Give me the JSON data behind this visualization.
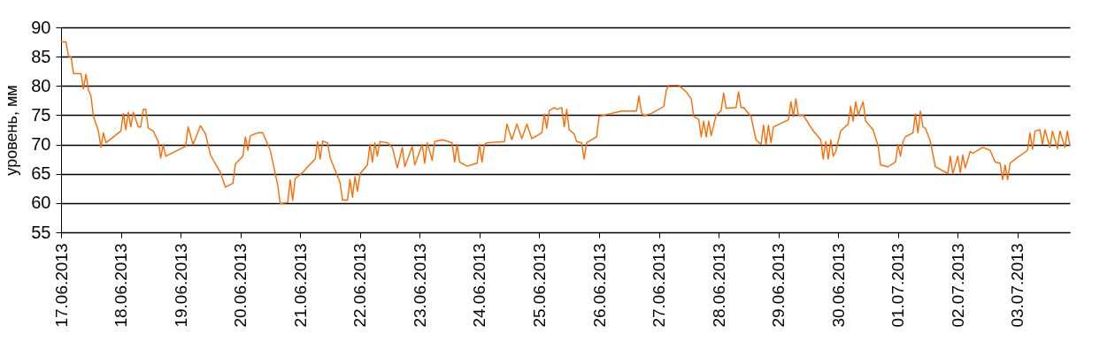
{
  "chart_data": {
    "type": "line",
    "ylabel": "уровень, мм",
    "color": "#ff6a00",
    "grid": "y",
    "xlim": [
      "2013-06-17T00:00",
      "2013-07-03T21:00"
    ],
    "xticks": [
      {
        "value": "2013-06-17",
        "label": "17.06.2013"
      },
      {
        "value": "2013-06-18",
        "label": "18.06.2013"
      },
      {
        "value": "2013-06-19",
        "label": "19.06.2013"
      },
      {
        "value": "2013-06-20",
        "label": "20.06.2013"
      },
      {
        "value": "2013-06-21",
        "label": "21.06.2013"
      },
      {
        "value": "2013-06-22",
        "label": "22.06.2013"
      },
      {
        "value": "2013-06-23",
        "label": "23.06.2013"
      },
      {
        "value": "2013-06-24",
        "label": "24.06.2013"
      },
      {
        "value": "2013-06-25",
        "label": "25.06.2013"
      },
      {
        "value": "2013-06-26",
        "label": "26.06.2013"
      },
      {
        "value": "2013-06-27",
        "label": "27.06.2013"
      },
      {
        "value": "2013-06-28",
        "label": "28.06.2013"
      },
      {
        "value": "2013-06-29",
        "label": "29.06.2013"
      },
      {
        "value": "2013-06-30",
        "label": "30.06.2013"
      },
      {
        "value": "2013-07-01",
        "label": "01.07.2013"
      },
      {
        "value": "2013-07-02",
        "label": "02.07.2013"
      },
      {
        "value": "2013-07-03",
        "label": "03.07.2013"
      }
    ],
    "ylim": [
      55,
      90
    ],
    "yticks": [
      55,
      60,
      65,
      70,
      75,
      80,
      85,
      90
    ],
    "x": [
      "2013-06-17T00:00",
      "2013-06-17T02:00",
      "2013-06-17T03:00",
      "2013-06-17T04:00",
      "2013-06-17T05:00",
      "2013-06-17T08:00",
      "2013-06-17T09:00",
      "2013-06-17T10:00",
      "2013-06-17T11:00",
      "2013-06-17T12:00",
      "2013-06-17T13:00",
      "2013-06-17T15:00",
      "2013-06-17T16:00",
      "2013-06-17T17:00",
      "2013-06-17T18:00",
      "2013-06-18T00:00",
      "2013-06-18T01:00",
      "2013-06-18T02:00",
      "2013-06-18T03:00",
      "2013-06-18T04:00",
      "2013-06-18T05:00",
      "2013-06-18T07:00",
      "2013-06-18T08:00",
      "2013-06-18T09:00",
      "2013-06-18T10:00",
      "2013-06-18T11:00",
      "2013-06-18T13:00",
      "2013-06-18T15:00",
      "2013-06-18T16:00",
      "2013-06-18T17:00",
      "2013-06-18T18:00",
      "2013-06-19T02:00",
      "2013-06-19T03:00",
      "2013-06-19T05:00",
      "2013-06-19T08:00",
      "2013-06-19T10:00",
      "2013-06-19T12:00",
      "2013-06-19T16:00",
      "2013-06-19T18:00",
      "2013-06-19T21:00",
      "2013-06-19T22:00",
      "2013-06-20T01:00",
      "2013-06-20T02:00",
      "2013-06-20T03:00",
      "2013-06-20T04:00",
      "2013-06-20T07:00",
      "2013-06-20T09:00",
      "2013-06-20T12:00",
      "2013-06-20T13:00",
      "2013-06-20T15:00",
      "2013-06-20T16:00",
      "2013-06-20T19:00",
      "2013-06-20T20:00",
      "2013-06-20T21:00",
      "2013-06-20T22:00",
      "2013-06-21T01:00",
      "2013-06-21T03:00",
      "2013-06-21T06:00",
      "2013-06-21T07:00",
      "2013-06-21T08:00",
      "2013-06-21T09:00",
      "2013-06-21T11:00",
      "2013-06-21T12:00",
      "2013-06-21T16:00",
      "2013-06-21T17:00",
      "2013-06-21T19:00",
      "2013-06-21T20:00",
      "2013-06-21T21:00",
      "2013-06-21T22:00",
      "2013-06-21T23:00",
      "2013-06-22T00:00",
      "2013-06-22T03:00",
      "2013-06-22T04:00",
      "2013-06-22T05:00",
      "2013-06-22T06:00",
      "2013-06-22T07:00",
      "2013-06-22T08:00",
      "2013-06-22T11:00",
      "2013-06-22T13:00",
      "2013-06-22T15:00",
      "2013-06-22T17:00",
      "2013-06-22T18:00",
      "2013-06-22T21:00",
      "2013-06-22T22:00",
      "2013-06-23T01:00",
      "2013-06-23T02:00",
      "2013-06-23T03:00",
      "2013-06-23T05:00",
      "2013-06-23T06:00",
      "2013-06-23T09:00",
      "2013-06-23T13:00",
      "2013-06-23T14:00",
      "2013-06-23T15:00",
      "2013-06-23T16:00",
      "2013-06-23T19:00",
      "2013-06-23T23:00",
      "2013-06-24T00:00",
      "2013-06-24T01:00",
      "2013-06-24T02:00",
      "2013-06-24T03:00",
      "2013-06-24T10:00",
      "2013-06-24T11:00",
      "2013-06-24T13:00",
      "2013-06-24T15:00",
      "2013-06-24T17:00",
      "2013-06-24T19:00",
      "2013-06-24T21:00",
      "2013-06-25T01:00",
      "2013-06-25T02:00",
      "2013-06-25T03:00",
      "2013-06-25T04:00",
      "2013-06-25T06:00",
      "2013-06-25T07:00",
      "2013-06-25T09:00",
      "2013-06-25T10:00",
      "2013-06-25T11:00",
      "2013-06-25T12:00",
      "2013-06-25T14:00",
      "2013-06-25T15:00",
      "2013-06-25T17:00",
      "2013-06-25T18:00",
      "2013-06-25T19:00",
      "2013-06-25T23:00",
      "2013-06-26T00:00",
      "2013-06-26T02:00",
      "2013-06-26T09:00",
      "2013-06-26T15:00",
      "2013-06-26T16:00",
      "2013-06-26T17:00",
      "2013-06-26T18:00",
      "2013-06-26T21:00",
      "2013-06-27T02:00",
      "2013-06-27T03:00",
      "2013-06-27T04:00",
      "2013-06-27T08:00",
      "2013-06-27T11:00",
      "2013-06-27T13:00",
      "2013-06-27T14:00",
      "2013-06-27T16:00",
      "2013-06-27T17:00",
      "2013-06-27T18:00",
      "2013-06-27T19:00",
      "2013-06-27T20:00",
      "2013-06-27T21:00",
      "2013-06-27T23:00",
      "2013-06-28T01:00",
      "2013-06-28T02:00",
      "2013-06-28T03:00",
      "2013-06-28T07:00",
      "2013-06-28T08:00",
      "2013-06-28T09:00",
      "2013-06-28T10:00",
      "2013-06-28T13:00",
      "2013-06-28T15:00",
      "2013-06-28T17:00",
      "2013-06-28T18:00",
      "2013-06-28T19:00",
      "2013-06-28T20:00",
      "2013-06-28T21:00",
      "2013-06-28T22:00",
      "2013-06-29T04:00",
      "2013-06-29T05:00",
      "2013-06-29T06:00",
      "2013-06-29T07:00",
      "2013-06-29T08:00",
      "2013-06-29T10:00",
      "2013-06-29T14:00",
      "2013-06-29T17:00",
      "2013-06-29T18:00",
      "2013-06-29T19:00",
      "2013-06-29T20:00",
      "2013-06-29T21:00",
      "2013-06-29T22:00",
      "2013-06-29T23:00",
      "2013-06-30T01:00",
      "2013-06-30T04:00",
      "2013-06-30T05:00",
      "2013-06-30T06:00",
      "2013-06-30T07:00",
      "2013-06-30T08:00",
      "2013-06-30T10:00",
      "2013-06-30T11:00",
      "2013-06-30T14:00",
      "2013-06-30T16:00",
      "2013-06-30T17:00",
      "2013-06-30T20:00",
      "2013-06-30T23:00",
      "2013-07-01T00:00",
      "2013-07-01T01:00",
      "2013-07-01T02:00",
      "2013-07-01T03:00",
      "2013-07-01T06:00",
      "2013-07-01T07:00",
      "2013-07-01T08:00",
      "2013-07-01T09:00",
      "2013-07-01T10:00",
      "2013-07-01T11:00",
      "2013-07-01T13:00",
      "2013-07-01T15:00",
      "2013-07-01T16:00",
      "2013-07-01T20:00",
      "2013-07-01T21:00",
      "2013-07-01T22:00",
      "2013-07-02T00:00",
      "2013-07-02T01:00",
      "2013-07-02T02:00",
      "2013-07-02T03:00",
      "2013-07-02T05:00",
      "2013-07-02T06:00",
      "2013-07-02T10:00",
      "2013-07-02T13:00",
      "2013-07-02T15:00",
      "2013-07-02T17:00",
      "2013-07-02T18:00",
      "2013-07-02T19:00",
      "2013-07-02T20:00",
      "2013-07-02T21:00",
      "2013-07-02T23:00",
      "2013-07-03T04:00",
      "2013-07-03T05:00",
      "2013-07-03T06:00",
      "2013-07-03T07:00",
      "2013-07-03T09:00",
      "2013-07-03T10:00",
      "2013-07-03T11:00",
      "2013-07-03T13:00",
      "2013-07-03T14:00",
      "2013-07-03T16:00",
      "2013-07-03T17:00",
      "2013-07-03T19:00",
      "2013-07-03T20:00",
      "2013-07-03T21:00"
    ],
    "values": [
      87.5,
      87.5,
      85,
      85,
      82.1,
      82.1,
      79.5,
      82,
      79.3,
      78.3,
      74.8,
      72.3,
      69.5,
      72,
      70.3,
      72.3,
      75.3,
      72.5,
      75.5,
      73,
      75.5,
      73,
      73,
      76,
      76,
      72.8,
      72.3,
      70.5,
      67.7,
      70,
      68,
      69.7,
      73,
      70,
      73.2,
      71.8,
      68.2,
      65.2,
      62.7,
      63.4,
      66.7,
      68,
      71.3,
      69,
      71.5,
      72,
      72,
      69,
      67,
      63,
      59.9,
      60.1,
      64,
      60.5,
      64.2,
      65.2,
      66.2,
      67.5,
      70.5,
      67.5,
      70.6,
      70.3,
      67.8,
      63.5,
      60.5,
      60.5,
      64,
      61,
      64.5,
      62,
      65,
      66.5,
      70,
      67,
      70.3,
      68,
      70.5,
      70.3,
      69.5,
      66,
      69.5,
      66.2,
      69.7,
      66.5,
      70,
      66.8,
      70.3,
      67.3,
      70.5,
      70.8,
      70.3,
      67,
      70,
      67,
      66.3,
      66.8,
      70,
      67,
      70,
      70.3,
      70.5,
      73.5,
      70.8,
      73.5,
      71,
      73.5,
      71,
      72,
      75.2,
      72.8,
      75.8,
      76.3,
      76,
      76.3,
      73,
      76,
      72.5,
      71.8,
      70.5,
      70.3,
      67.5,
      70.3,
      71.3,
      74.8,
      75,
      75.7,
      75.7,
      78.3,
      75.5,
      74.9,
      75.3,
      76.5,
      79.3,
      80.1,
      80.1,
      79,
      77.8,
      74.8,
      74.3,
      71.3,
      74,
      71.3,
      74,
      71.5,
      75,
      75.8,
      78.8,
      76.2,
      76.3,
      79,
      76.3,
      76.3,
      74.8,
      70.8,
      70,
      73.3,
      70,
      73.3,
      70.3,
      73,
      74.2,
      77.3,
      74.8,
      77.8,
      75,
      75,
      72.3,
      70.8,
      67.5,
      70.5,
      67.5,
      70.8,
      68,
      68.8,
      72.3,
      73.5,
      76.5,
      74,
      77.3,
      75,
      77.3,
      74,
      72.5,
      69.8,
      66.5,
      66.2,
      67,
      70,
      68,
      70.5,
      71.3,
      72,
      75.2,
      72,
      75.7,
      73,
      72.8,
      70.5,
      66.2,
      66,
      65,
      68,
      65,
      68,
      65.2,
      68.2,
      66,
      68.8,
      68.5,
      69.5,
      69,
      67,
      66.8,
      64,
      66.5,
      64,
      66.8,
      67.5,
      69,
      72,
      69.2,
      72.3,
      72.5,
      70,
      72.5,
      69.5,
      72.3,
      69.3,
      72.3,
      69.5,
      72.3,
      69.8
    ]
  }
}
